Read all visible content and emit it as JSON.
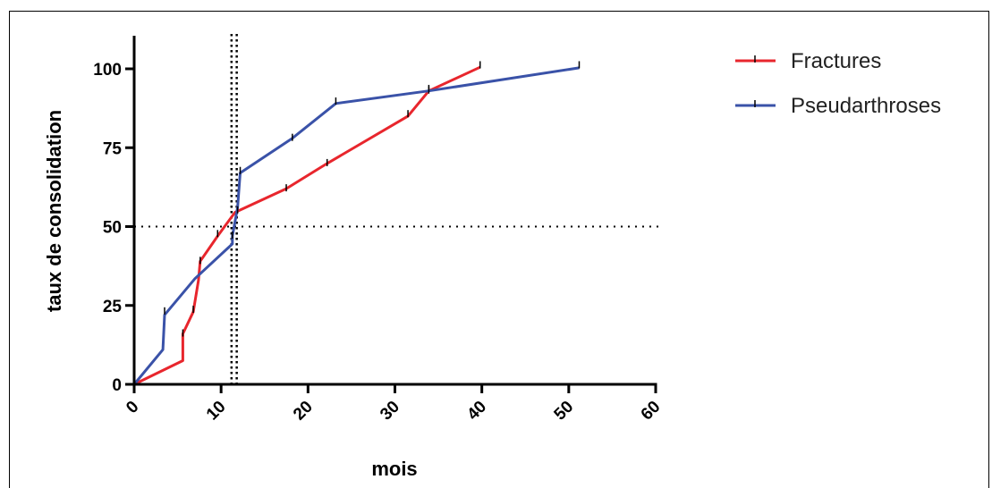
{
  "chart_data": {
    "type": "line",
    "title": "",
    "xlabel": "mois",
    "ylabel": "taux de consolidation",
    "xlim": [
      0,
      60
    ],
    "ylim": [
      0,
      100
    ],
    "x_ticks": [
      0,
      10,
      20,
      30,
      40,
      50,
      60
    ],
    "y_ticks": [
      0,
      25,
      50,
      75,
      100
    ],
    "reference_lines": [
      {
        "axis": "y",
        "value": 50
      },
      {
        "axis": "x",
        "value": 11.2
      },
      {
        "axis": "x",
        "value": 11.8
      }
    ],
    "legend_position": "top-right",
    "series": [
      {
        "name": "Fractures",
        "color": "#e8262d",
        "points": [
          [
            0,
            0
          ],
          [
            5.6,
            7.5
          ],
          [
            5.6,
            16
          ],
          [
            6.8,
            23
          ],
          [
            7.4,
            33
          ],
          [
            7.6,
            39
          ],
          [
            9.6,
            47
          ],
          [
            11.6,
            54.5
          ],
          [
            17.5,
            62
          ],
          [
            22.2,
            70
          ],
          [
            31.5,
            85
          ],
          [
            33.9,
            93
          ],
          [
            39.8,
            100.5
          ]
        ],
        "censored": [
          [
            5.6,
            16
          ],
          [
            6.8,
            23.5
          ],
          [
            7.6,
            39
          ],
          [
            9.6,
            47.5
          ],
          [
            17.5,
            62
          ],
          [
            22.2,
            70
          ],
          [
            31.5,
            85.5
          ],
          [
            33.9,
            93
          ],
          [
            39.8,
            101
          ]
        ]
      },
      {
        "name": "Pseudarthroses",
        "color": "#3a52a8",
        "points": [
          [
            0,
            0
          ],
          [
            3.3,
            11
          ],
          [
            3.5,
            22
          ],
          [
            7.0,
            33.5
          ],
          [
            11.3,
            44.5
          ],
          [
            11.3,
            47
          ],
          [
            11.9,
            56
          ],
          [
            12.2,
            67
          ],
          [
            18.2,
            78
          ],
          [
            23.2,
            89
          ],
          [
            33.9,
            93
          ],
          [
            51.2,
            100.3
          ]
        ],
        "censored": [
          [
            3.5,
            23
          ],
          [
            11.3,
            47
          ],
          [
            11.9,
            55
          ],
          [
            12.2,
            67.5
          ],
          [
            18.2,
            78
          ],
          [
            23.2,
            89.5
          ],
          [
            33.9,
            93.5
          ],
          [
            51.2,
            101
          ]
        ]
      }
    ]
  }
}
